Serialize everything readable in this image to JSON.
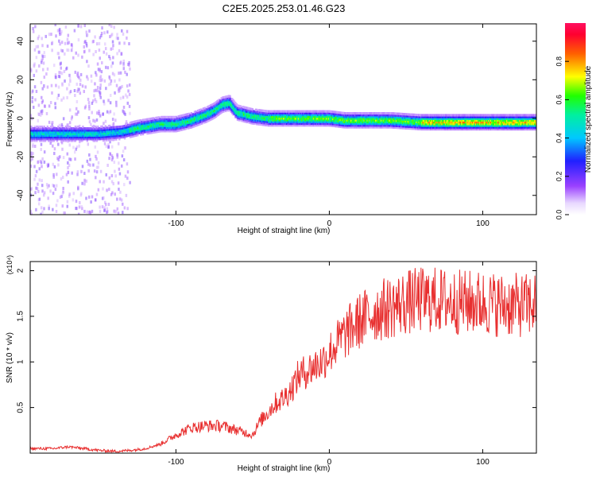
{
  "figure": {
    "title": "C2E5.2025.253.01.46.G23"
  },
  "chart_data": [
    {
      "type": "heatmap",
      "xlabel": "Height of straight line (km)",
      "ylabel": "Frequency (Hz)",
      "xlim": [
        -195,
        135
      ],
      "ylim": [
        -50,
        49
      ],
      "xticks": [
        -100,
        0,
        100
      ],
      "yticks": [
        -40,
        -20,
        0,
        20,
        40
      ],
      "colorbar": {
        "label": "Normalized spectral amplitude",
        "range": [
          0,
          1
        ],
        "ticks": [
          0.0,
          0.2,
          0.4,
          0.6,
          0.8
        ]
      },
      "ridge": {
        "description_points_x": [
          -195,
          -170,
          -150,
          -135,
          -125,
          -110,
          -100,
          -90,
          -80,
          -75,
          -70,
          -65,
          -60,
          -50,
          -40,
          -30,
          -20,
          -10,
          0,
          10,
          20,
          40,
          60,
          80,
          100,
          120,
          135
        ],
        "frequency_hz": [
          -8,
          -8,
          -8,
          -7,
          -5,
          -3,
          -3,
          -1,
          2,
          4,
          7,
          8,
          3,
          1,
          0,
          0,
          0,
          0,
          0,
          -1,
          -1,
          -1,
          -2,
          -2,
          -2,
          -2,
          -2
        ]
      },
      "noise_band_x": [
        -195,
        -130
      ]
    },
    {
      "type": "line",
      "xlabel": "Height of straight line (km)",
      "ylabel": "SNR (10 * v/v)",
      "y_multiplier": "(x10⁴)",
      "xlim": [
        -195,
        135
      ],
      "ylim": [
        0,
        2.1
      ],
      "xticks": [
        -100,
        0,
        100
      ],
      "yticks": [
        0.5,
        1.0,
        1.5,
        2.0
      ],
      "color": "#ee3333",
      "series": [
        {
          "x": [
            -195,
            -180,
            -170,
            -160,
            -150,
            -140,
            -130,
            -120,
            -110,
            -100,
            -90,
            -80,
            -70,
            -60,
            -50,
            -45,
            -40,
            -35,
            -30,
            -25,
            -20,
            -15,
            -10,
            -5,
            0,
            5,
            10,
            20,
            30,
            40,
            50,
            60,
            70,
            80,
            90,
            100,
            110,
            120,
            130,
            135
          ],
          "values": [
            0.05,
            0.05,
            0.07,
            0.05,
            0.03,
            0.02,
            0.03,
            0.05,
            0.1,
            0.2,
            0.28,
            0.3,
            0.3,
            0.25,
            0.2,
            0.35,
            0.45,
            0.55,
            0.6,
            0.7,
            0.85,
            0.9,
            0.95,
            1.0,
            1.1,
            1.2,
            1.3,
            1.45,
            1.55,
            1.6,
            1.65,
            1.68,
            1.68,
            1.66,
            1.65,
            1.65,
            1.63,
            1.62,
            1.62,
            1.65
          ]
        }
      ]
    }
  ]
}
